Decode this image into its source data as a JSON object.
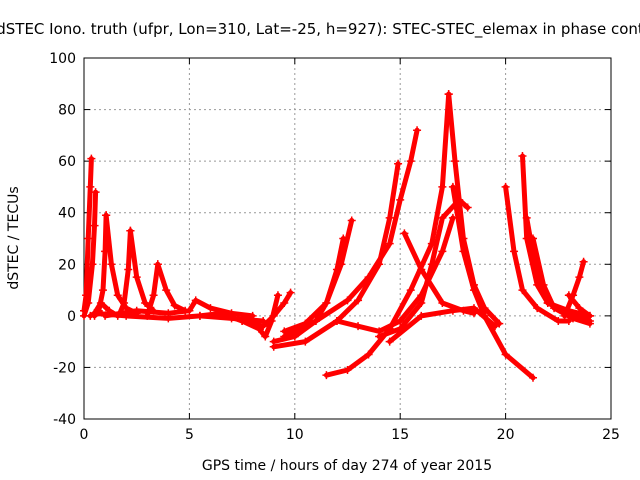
{
  "chart_data": {
    "type": "scatter",
    "title": "dSTEC Iono. truth (ufpr, Lon=310, Lat=-25, h=927): STEC-STEC_elemax in phase cont",
    "xlabel": "GPS time / hours of day 274 of year 2015",
    "ylabel": "dSTEC  / TECUs",
    "xlim": [
      0,
      25
    ],
    "ylim": [
      -40,
      100
    ],
    "xticks": [
      0,
      5,
      10,
      15,
      20,
      25
    ],
    "yticks": [
      -40,
      -20,
      0,
      20,
      40,
      60,
      80,
      100
    ],
    "grid": true,
    "legend": "none",
    "marker": "+",
    "color": "#ff0000",
    "series": [
      {
        "x": [
          0.0,
          0.1,
          0.2,
          0.3,
          0.35
        ],
        "y": [
          2,
          8,
          30,
          50,
          61
        ]
      },
      {
        "x": [
          0.3,
          0.5,
          0.8,
          1.2,
          1.6
        ],
        "y": [
          0,
          1,
          5,
          2,
          0
        ]
      },
      {
        "x": [
          0.0,
          0.2,
          0.4,
          0.5,
          0.55
        ],
        "y": [
          0,
          5,
          20,
          35,
          48
        ]
      },
      {
        "x": [
          0.5,
          0.7,
          0.9,
          1.0,
          1.05
        ],
        "y": [
          0,
          2,
          10,
          25,
          39
        ]
      },
      {
        "x": [
          1.05,
          1.3,
          1.6,
          2.0,
          2.5
        ],
        "y": [
          39,
          20,
          8,
          3,
          1
        ]
      },
      {
        "x": [
          1.7,
          1.9,
          2.1,
          2.2
        ],
        "y": [
          1,
          5,
          18,
          33
        ]
      },
      {
        "x": [
          2.2,
          2.5,
          2.9,
          3.3
        ],
        "y": [
          33,
          15,
          5,
          2
        ]
      },
      {
        "x": [
          3.0,
          3.3,
          3.5
        ],
        "y": [
          0,
          8,
          20
        ]
      },
      {
        "x": [
          3.5,
          3.9,
          4.3,
          4.8
        ],
        "y": [
          20,
          10,
          4,
          2
        ]
      },
      {
        "x": [
          0.5,
          2.0,
          4.0,
          5.5,
          7.0,
          8.5
        ],
        "y": [
          1,
          0,
          -1,
          0,
          -1,
          -2
        ]
      },
      {
        "x": [
          1.0,
          2.5,
          4.0,
          5.0,
          5.3,
          6.0,
          7.0,
          8.0
        ],
        "y": [
          0,
          2,
          1,
          2,
          6,
          3,
          1,
          0
        ]
      },
      {
        "x": [
          5.5,
          6.5,
          7.5,
          8.0,
          8.5,
          9.0,
          9.5,
          9.8
        ],
        "y": [
          0,
          1,
          -2,
          -3,
          -4,
          0,
          5,
          9
        ]
      },
      {
        "x": [
          7.5,
          8.3,
          8.6,
          8.9,
          9.2
        ],
        "y": [
          -2,
          -5,
          -8,
          -2,
          8
        ]
      },
      {
        "x": [
          9.0,
          10.0,
          11.0,
          11.5,
          12.0,
          12.3
        ],
        "y": [
          -10,
          -8,
          -2,
          5,
          18,
          30
        ]
      },
      {
        "x": [
          9.5,
          10.5,
          11.5,
          12.2,
          12.7
        ],
        "y": [
          -6,
          -3,
          5,
          20,
          37
        ]
      },
      {
        "x": [
          9.0,
          10.5,
          12.0,
          13.0,
          14.0,
          14.5,
          14.9
        ],
        "y": [
          -12,
          -10,
          -2,
          6,
          20,
          38,
          59
        ]
      },
      {
        "x": [
          9.5,
          11.0,
          12.5,
          13.5,
          14.5,
          15.0,
          15.5,
          15.8
        ],
        "y": [
          -8,
          -2,
          6,
          15,
          28,
          45,
          60,
          72
        ]
      },
      {
        "x": [
          11.5,
          12.5,
          13.5,
          14.5,
          15.5,
          16.5,
          17.0,
          17.3
        ],
        "y": [
          -23,
          -21,
          -15,
          -5,
          10,
          28,
          50,
          86
        ]
      },
      {
        "x": [
          12.0,
          13.0,
          14.0,
          15.0,
          16.0,
          17.0,
          17.5
        ],
        "y": [
          -2,
          -4,
          -6,
          -2,
          8,
          25,
          38
        ]
      },
      {
        "x": [
          14.0,
          15.0,
          16.0,
          16.5,
          17.0,
          17.8,
          18.2
        ],
        "y": [
          -8,
          -5,
          5,
          20,
          38,
          45,
          42
        ]
      },
      {
        "x": [
          15.2,
          16.0,
          17.0,
          18.0,
          18.5
        ],
        "y": [
          32,
          18,
          5,
          2,
          1
        ]
      },
      {
        "x": [
          17.3,
          17.6,
          18.0,
          18.5,
          19.0,
          19.7
        ],
        "y": [
          86,
          60,
          30,
          12,
          3,
          -3
        ]
      },
      {
        "x": [
          17.5,
          18.0,
          18.5,
          19.0,
          20.0,
          21.3
        ],
        "y": [
          50,
          25,
          10,
          0,
          -15,
          -24
        ]
      },
      {
        "x": [
          14.5,
          16.0,
          17.5,
          18.5,
          19.5
        ],
        "y": [
          -10,
          0,
          2,
          3,
          -4
        ]
      },
      {
        "x": [
          20.0,
          20.4,
          20.8,
          21.5,
          22.5,
          23.0
        ],
        "y": [
          50,
          25,
          10,
          3,
          -2,
          -2
        ]
      },
      {
        "x": [
          20.8,
          21.0,
          21.5,
          22.0,
          23.0,
          24.0
        ],
        "y": [
          62,
          30,
          12,
          5,
          1,
          -2
        ]
      },
      {
        "x": [
          21.0,
          21.5,
          22.0,
          23.0,
          24.0
        ],
        "y": [
          38,
          15,
          5,
          2,
          0
        ]
      },
      {
        "x": [
          21.3,
          21.8,
          22.3,
          23.2,
          24.0
        ],
        "y": [
          30,
          12,
          3,
          -1,
          -3
        ]
      },
      {
        "x": [
          22.8,
          23.2,
          23.5,
          23.7
        ],
        "y": [
          0,
          8,
          15,
          21
        ]
      },
      {
        "x": [
          23.0,
          23.5,
          24.0
        ],
        "y": [
          8,
          3,
          0
        ]
      }
    ]
  }
}
